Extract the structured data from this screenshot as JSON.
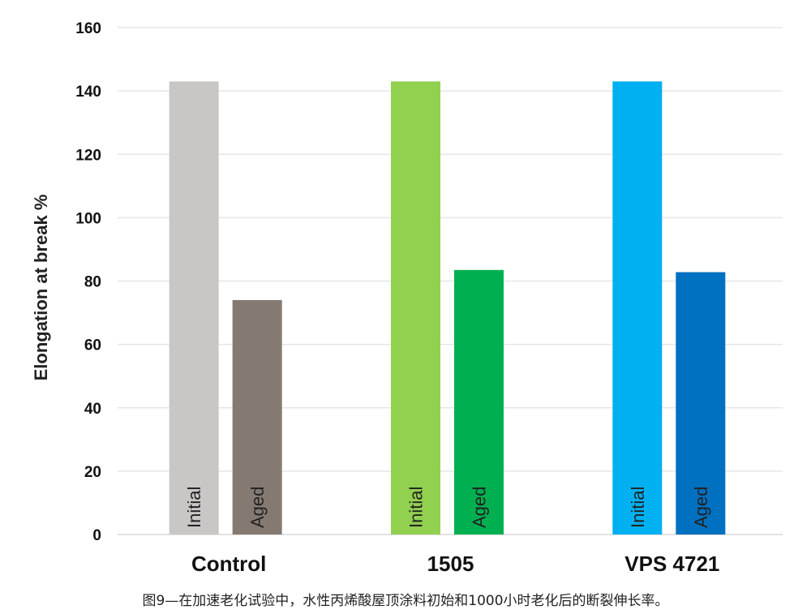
{
  "chart_data": {
    "type": "bar",
    "categories": [
      "Control",
      "1505",
      "VPS 4721"
    ],
    "series": [
      {
        "name": "Initial",
        "values": [
          143,
          143,
          143
        ],
        "colors": [
          "#c9c7c5",
          "#92d050",
          "#00b0f0"
        ]
      },
      {
        "name": "Aged",
        "values": [
          74,
          83.5,
          82.8
        ],
        "colors": [
          "#857a72",
          "#00b050",
          "#0070c0"
        ]
      }
    ],
    "title": "",
    "xlabel": "",
    "ylabel": "Elongation at break %",
    "ylim": [
      0,
      160
    ],
    "yticks": [
      0,
      20,
      40,
      60,
      80,
      100,
      120,
      140,
      160
    ],
    "grid": true,
    "legend": "none (labels inside bars)"
  },
  "caption": "图9—在加速老化试验中，水性丙烯酸屋顶涂料初始和1000小时老化后的断裂伸长率。"
}
